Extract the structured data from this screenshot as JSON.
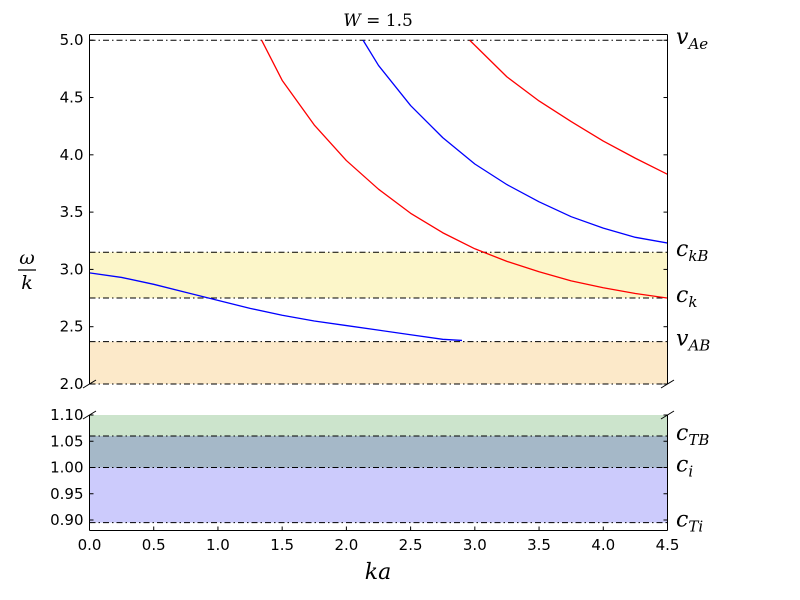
{
  "chart_data": {
    "type": "line",
    "title": "W = 1.5",
    "title_parts": {
      "var": "W",
      "eq": " = ",
      "val": "1.5"
    },
    "xlabel": "ka",
    "ylabel_num": "ω",
    "ylabel_den": "k",
    "xlim": [
      0,
      4.5
    ],
    "xticks": [
      "0.0",
      "0.5",
      "1.0",
      "1.5",
      "2.0",
      "2.5",
      "3.0",
      "3.5",
      "4.0",
      "4.5"
    ],
    "upper_panel": {
      "ylim": [
        2.0,
        5.05
      ],
      "yticks": [
        "2.0",
        "2.5",
        "3.0",
        "3.5",
        "4.0",
        "4.5",
        "5.0"
      ]
    },
    "lower_panel": {
      "ylim": [
        0.88,
        1.1
      ],
      "yticks": [
        "0.90",
        "0.95",
        "1.00",
        "1.05",
        "1.10"
      ]
    },
    "bands": [
      {
        "panel": "upper",
        "y0": 2.75,
        "y1": 3.15,
        "color": "#fcf6c9"
      },
      {
        "panel": "upper",
        "y0": 2.0,
        "y1": 2.37,
        "color": "#fce9c9"
      },
      {
        "panel": "lower",
        "y0": 1.06,
        "y1": 1.1,
        "color": "#cce4cc"
      },
      {
        "panel": "lower",
        "y0": 1.0,
        "y1": 1.06,
        "color": "#a5b8c8"
      },
      {
        "panel": "lower",
        "y0": 0.895,
        "y1": 1.0,
        "color": "#cccbfc"
      }
    ],
    "reference_lines": [
      {
        "panel": "upper",
        "y": 5.0,
        "label_main": "v",
        "label_sub": "Ae"
      },
      {
        "panel": "upper",
        "y": 3.15,
        "label_main": "c",
        "label_sub": "kB"
      },
      {
        "panel": "upper",
        "y": 2.75,
        "label_main": "c",
        "label_sub": "k"
      },
      {
        "panel": "upper",
        "y": 2.37,
        "label_main": "v",
        "label_sub": "AB"
      },
      {
        "panel": "upper",
        "y": 2.0,
        "label_main": "",
        "label_sub": ""
      },
      {
        "panel": "lower",
        "y": 1.06,
        "label_main": "c",
        "label_sub": "TB"
      },
      {
        "panel": "lower",
        "y": 1.0,
        "label_main": "c",
        "label_sub": "i"
      },
      {
        "panel": "lower",
        "y": 0.895,
        "label_main": "c",
        "label_sub": "Ti"
      }
    ],
    "series": [
      {
        "color": "#ff0000",
        "x": [
          1.34,
          1.5,
          1.75,
          2.0,
          2.25,
          2.5,
          2.75,
          3.0,
          3.25,
          3.5,
          3.75,
          4.0,
          4.25,
          4.5
        ],
        "y": [
          5.0,
          4.65,
          4.26,
          3.95,
          3.7,
          3.49,
          3.32,
          3.18,
          3.07,
          2.98,
          2.9,
          2.84,
          2.79,
          2.75
        ]
      },
      {
        "color": "#0000ff",
        "x": [
          2.13,
          2.25,
          2.5,
          2.75,
          3.0,
          3.25,
          3.5,
          3.75,
          4.0,
          4.25,
          4.5
        ],
        "y": [
          5.0,
          4.78,
          4.43,
          4.15,
          3.92,
          3.74,
          3.59,
          3.46,
          3.36,
          3.28,
          3.23
        ]
      },
      {
        "color": "#ff0000",
        "x": [
          2.96,
          3.25,
          3.5,
          3.75,
          4.0,
          4.25,
          4.5
        ],
        "y": [
          5.0,
          4.68,
          4.47,
          4.29,
          4.12,
          3.97,
          3.83
        ]
      },
      {
        "color": "#0000ff",
        "x": [
          0.0,
          0.25,
          0.5,
          0.75,
          1.0,
          1.25,
          1.5,
          1.75,
          2.0,
          2.25,
          2.5,
          2.75,
          2.9
        ],
        "y": [
          2.97,
          2.93,
          2.87,
          2.8,
          2.73,
          2.66,
          2.6,
          2.55,
          2.51,
          2.47,
          2.43,
          2.39,
          2.38
        ]
      }
    ]
  }
}
